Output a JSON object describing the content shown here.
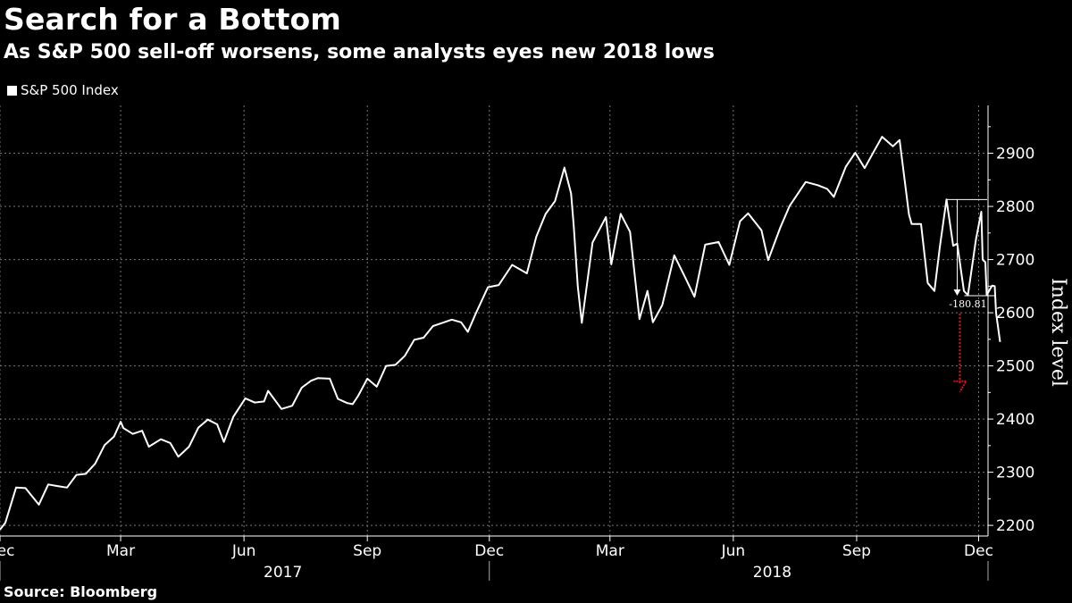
{
  "header": {
    "title": "Search for a Bottom",
    "subtitle": "As S&P 500 sell-off worsens, some analysts eyes new 2018 lows"
  },
  "footer": {
    "source": "Source: Bloomberg"
  },
  "colors": {
    "background": "#000000",
    "line": "#ffffff",
    "grid": "#777777",
    "projection": "#e0101a"
  },
  "chart_data": {
    "type": "line",
    "legend": {
      "position": "top-left"
    },
    "grid": true,
    "ylabel": "Index level",
    "ylim": [
      2180,
      2990
    ],
    "yticks": [
      2200,
      2300,
      2400,
      2500,
      2600,
      2700,
      2800,
      2900
    ],
    "xlim": [
      "2016-12-01",
      "2018-12-08"
    ],
    "xticks": [
      {
        "date": "2016-12-01",
        "label": "Dec"
      },
      {
        "date": "2017-03-01",
        "label": "Mar"
      },
      {
        "date": "2017-06-01",
        "label": "Jun"
      },
      {
        "date": "2017-09-01",
        "label": "Sep"
      },
      {
        "date": "2017-12-01",
        "label": "Dec"
      },
      {
        "date": "2018-03-01",
        "label": "Mar"
      },
      {
        "date": "2018-06-01",
        "label": "Jun"
      },
      {
        "date": "2018-09-01",
        "label": "Sep"
      },
      {
        "date": "2018-12-01",
        "label": "Dec"
      }
    ],
    "year_labels": [
      {
        "date": "2017-06-30",
        "label": "2017"
      },
      {
        "date": "2018-06-30",
        "label": "2018"
      }
    ],
    "series": [
      {
        "name": "S&P 500 Index",
        "points": [
          [
            "2016-12-01",
            2192
          ],
          [
            "2016-12-05",
            2205
          ],
          [
            "2016-12-13",
            2271
          ],
          [
            "2016-12-20",
            2270
          ],
          [
            "2016-12-30",
            2239
          ],
          [
            "2017-01-06",
            2277
          ],
          [
            "2017-01-13",
            2274
          ],
          [
            "2017-01-20",
            2271
          ],
          [
            "2017-01-27",
            2295
          ],
          [
            "2017-02-03",
            2297
          ],
          [
            "2017-02-10",
            2316
          ],
          [
            "2017-02-17",
            2351
          ],
          [
            "2017-02-24",
            2367
          ],
          [
            "2017-03-01",
            2395
          ],
          [
            "2017-03-03",
            2383
          ],
          [
            "2017-03-10",
            2372
          ],
          [
            "2017-03-17",
            2378
          ],
          [
            "2017-03-22",
            2348
          ],
          [
            "2017-03-31",
            2362
          ],
          [
            "2017-04-07",
            2355
          ],
          [
            "2017-04-13",
            2329
          ],
          [
            "2017-04-21",
            2348
          ],
          [
            "2017-04-28",
            2384
          ],
          [
            "2017-05-05",
            2399
          ],
          [
            "2017-05-12",
            2390
          ],
          [
            "2017-05-17",
            2357
          ],
          [
            "2017-05-24",
            2404
          ],
          [
            "2017-06-02",
            2439
          ],
          [
            "2017-06-09",
            2431
          ],
          [
            "2017-06-16",
            2433
          ],
          [
            "2017-06-19",
            2453
          ],
          [
            "2017-06-29",
            2419
          ],
          [
            "2017-07-07",
            2425
          ],
          [
            "2017-07-14",
            2459
          ],
          [
            "2017-07-21",
            2472
          ],
          [
            "2017-07-26",
            2477
          ],
          [
            "2017-08-04",
            2476
          ],
          [
            "2017-08-10",
            2438
          ],
          [
            "2017-08-17",
            2430
          ],
          [
            "2017-08-21",
            2428
          ],
          [
            "2017-08-25",
            2443
          ],
          [
            "2017-09-01",
            2476
          ],
          [
            "2017-09-08",
            2461
          ],
          [
            "2017-09-15",
            2500
          ],
          [
            "2017-09-22",
            2502
          ],
          [
            "2017-09-29",
            2519
          ],
          [
            "2017-10-06",
            2549
          ],
          [
            "2017-10-13",
            2553
          ],
          [
            "2017-10-20",
            2575
          ],
          [
            "2017-10-27",
            2581
          ],
          [
            "2017-11-03",
            2587
          ],
          [
            "2017-11-10",
            2582
          ],
          [
            "2017-11-15",
            2564
          ],
          [
            "2017-11-21",
            2599
          ],
          [
            "2017-11-30",
            2648
          ],
          [
            "2017-12-08",
            2652
          ],
          [
            "2017-12-18",
            2690
          ],
          [
            "2017-12-29",
            2674
          ],
          [
            "2018-01-05",
            2743
          ],
          [
            "2018-01-12",
            2786
          ],
          [
            "2018-01-19",
            2810
          ],
          [
            "2018-01-26",
            2873
          ],
          [
            "2018-01-31",
            2824
          ],
          [
            "2018-02-02",
            2762
          ],
          [
            "2018-02-05",
            2649
          ],
          [
            "2018-02-08",
            2581
          ],
          [
            "2018-02-16",
            2732
          ],
          [
            "2018-02-26",
            2780
          ],
          [
            "2018-03-02",
            2691
          ],
          [
            "2018-03-09",
            2786
          ],
          [
            "2018-03-16",
            2752
          ],
          [
            "2018-03-23",
            2588
          ],
          [
            "2018-03-29",
            2641
          ],
          [
            "2018-04-02",
            2582
          ],
          [
            "2018-04-09",
            2614
          ],
          [
            "2018-04-18",
            2708
          ],
          [
            "2018-04-26",
            2667
          ],
          [
            "2018-05-03",
            2630
          ],
          [
            "2018-05-11",
            2728
          ],
          [
            "2018-05-21",
            2733
          ],
          [
            "2018-05-29",
            2690
          ],
          [
            "2018-06-06",
            2772
          ],
          [
            "2018-06-12",
            2787
          ],
          [
            "2018-06-22",
            2755
          ],
          [
            "2018-06-27",
            2699
          ],
          [
            "2018-07-06",
            2760
          ],
          [
            "2018-07-13",
            2801
          ],
          [
            "2018-07-25",
            2846
          ],
          [
            "2018-08-03",
            2840
          ],
          [
            "2018-08-10",
            2833
          ],
          [
            "2018-08-15",
            2818
          ],
          [
            "2018-08-24",
            2875
          ],
          [
            "2018-08-31",
            2901
          ],
          [
            "2018-09-07",
            2872
          ],
          [
            "2018-09-14",
            2904
          ],
          [
            "2018-09-20",
            2931
          ],
          [
            "2018-09-28",
            2913
          ],
          [
            "2018-10-03",
            2925
          ],
          [
            "2018-10-10",
            2785
          ],
          [
            "2018-10-12",
            2767
          ],
          [
            "2018-10-19",
            2767
          ],
          [
            "2018-10-24",
            2656
          ],
          [
            "2018-10-29",
            2641
          ],
          [
            "2018-11-02",
            2723
          ],
          [
            "2018-11-07",
            2813
          ],
          [
            "2018-11-12",
            2726
          ],
          [
            "2018-11-15",
            2730
          ],
          [
            "2018-11-20",
            2641
          ],
          [
            "2018-11-23",
            2633
          ],
          [
            "2018-11-29",
            2738
          ],
          [
            "2018-12-03",
            2790
          ],
          [
            "2018-12-04",
            2700
          ],
          [
            "2018-12-06",
            2695
          ],
          [
            "2018-12-07",
            2633
          ],
          [
            "2018-12-11",
            2651
          ],
          [
            "2018-12-13",
            2650
          ],
          [
            "2018-12-14",
            2600
          ],
          [
            "2018-12-17",
            2545
          ]
        ]
      }
    ],
    "annotations": [
      {
        "type": "drop",
        "label": "-180.81",
        "from_date": "2018-11-07",
        "to_date": "2018-12-10",
        "top_value": 2813,
        "bottom_value": 2632,
        "arrow_date": "2018-11-15"
      },
      {
        "type": "projection",
        "date": "2018-11-17",
        "from_value": 2632,
        "to_value": 2451
      }
    ]
  }
}
